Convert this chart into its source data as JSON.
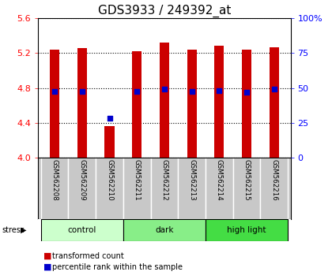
{
  "title": "GDS3933 / 249392_at",
  "samples": [
    "GSM562208",
    "GSM562209",
    "GSM562210",
    "GSM562211",
    "GSM562212",
    "GSM562213",
    "GSM562214",
    "GSM562215",
    "GSM562216"
  ],
  "bar_tops": [
    5.24,
    5.26,
    4.36,
    5.22,
    5.32,
    5.24,
    5.28,
    5.24,
    5.27
  ],
  "bar_bottom": 4.0,
  "blue_y": [
    4.76,
    4.76,
    4.45,
    4.76,
    4.79,
    4.76,
    4.77,
    4.75,
    4.79
  ],
  "bar_color": "#cc0000",
  "blue_color": "#0000cc",
  "ylim": [
    4.0,
    5.6
  ],
  "right_ylim": [
    0,
    100
  ],
  "right_yticks": [
    0,
    25,
    50,
    75,
    100
  ],
  "right_yticklabels": [
    "0",
    "25",
    "50",
    "75",
    "100%"
  ],
  "left_yticks": [
    4.0,
    4.4,
    4.8,
    5.2,
    5.6
  ],
  "groups": [
    {
      "label": "control",
      "start": 0,
      "end": 3,
      "color": "#ccffcc"
    },
    {
      "label": "dark",
      "start": 3,
      "end": 6,
      "color": "#88ee88"
    },
    {
      "label": "high light",
      "start": 6,
      "end": 9,
      "color": "#44dd44"
    }
  ],
  "stress_label": "stress",
  "legend_items": [
    {
      "label": "transformed count",
      "color": "#cc0000"
    },
    {
      "label": "percentile rank within the sample",
      "color": "#0000cc"
    }
  ],
  "bg_color": "#ffffff",
  "bar_width": 0.35,
  "title_fontsize": 11,
  "tick_fontsize": 8
}
